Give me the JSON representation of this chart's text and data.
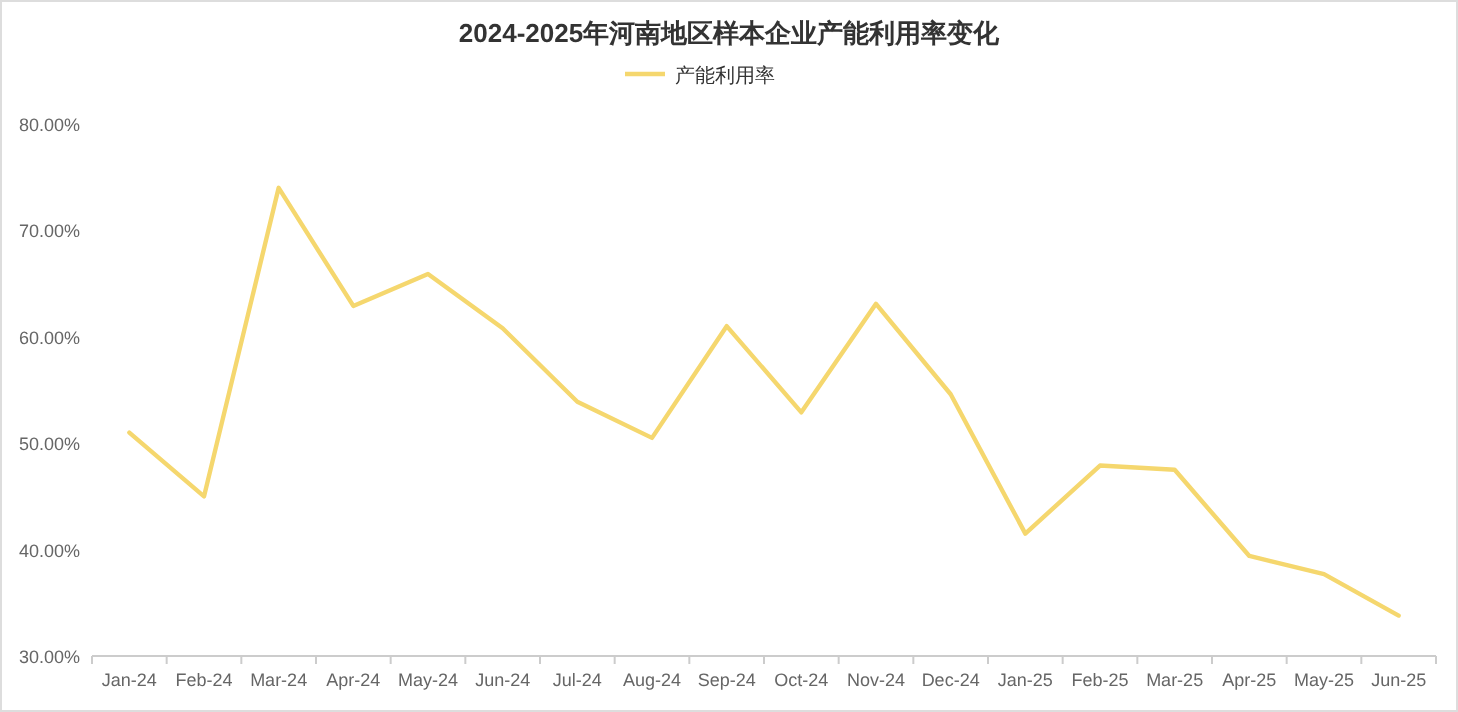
{
  "chart_data": {
    "type": "line",
    "title": "2024-2025年河南地区样本企业产能利用率变化",
    "categories": [
      "Jan-24",
      "Feb-24",
      "Mar-24",
      "Apr-24",
      "May-24",
      "Jun-24",
      "Jul-24",
      "Aug-24",
      "Sep-24",
      "Oct-24",
      "Nov-24",
      "Dec-24",
      "Jan-25",
      "Feb-25",
      "Mar-25",
      "Apr-25",
      "May-25",
      "Jun-25"
    ],
    "series": [
      {
        "name": "产能利用率",
        "color": "#f5d76e",
        "values": [
          51.0,
          45.0,
          74.0,
          62.9,
          65.9,
          60.8,
          53.9,
          50.5,
          61.0,
          52.9,
          63.1,
          54.6,
          41.5,
          47.9,
          47.5,
          39.4,
          37.7,
          33.8
        ]
      }
    ],
    "ylim": [
      30,
      80
    ],
    "yticks": [
      {
        "value": 30,
        "label": "30.00%"
      },
      {
        "value": 40,
        "label": "40.00%"
      },
      {
        "value": 50,
        "label": "50.00%"
      },
      {
        "value": 60,
        "label": "60.00%"
      },
      {
        "value": 70,
        "label": "70.00%"
      },
      {
        "value": 80,
        "label": "80.00%"
      }
    ],
    "grid": false,
    "legend": "top",
    "marker": "none",
    "line_style": "solid"
  }
}
